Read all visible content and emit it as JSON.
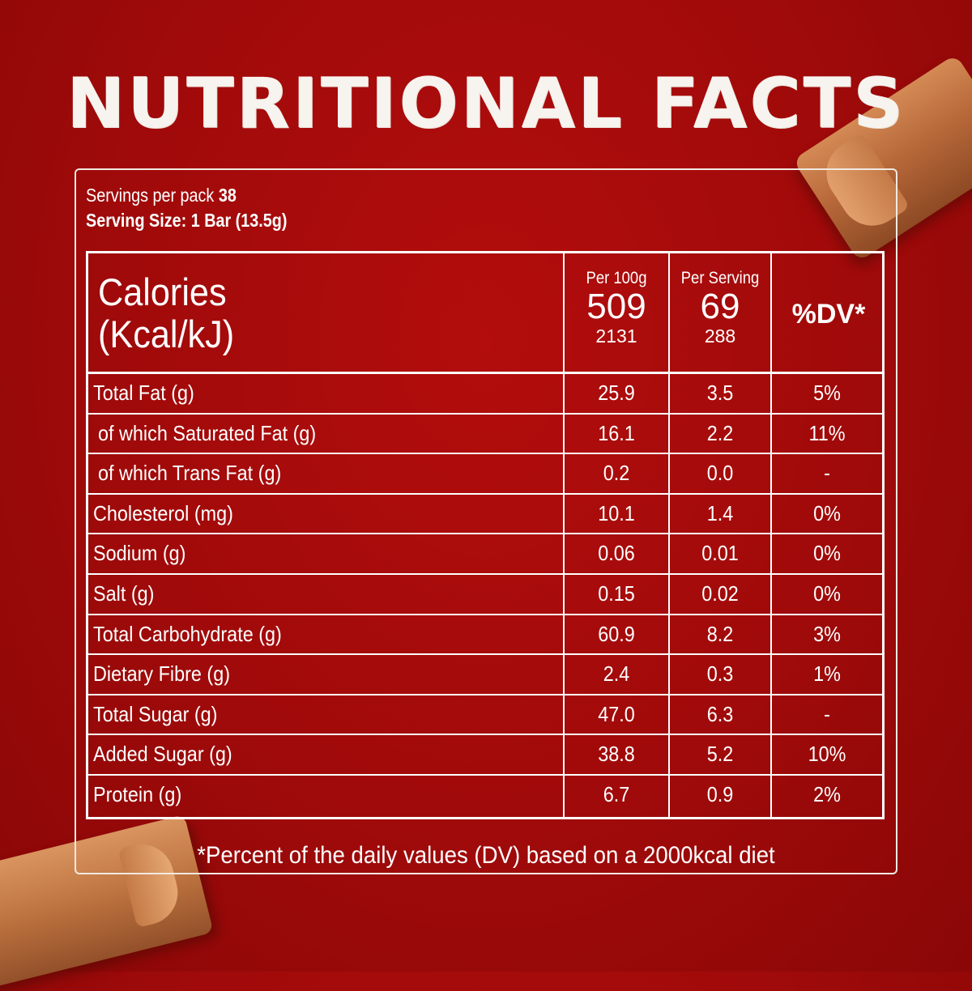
{
  "title": "NUTRITIONAL FACTS",
  "servings": {
    "per_pack_label": "Servings per pack",
    "per_pack_value": "38",
    "size_text": "Serving Size: 1 Bar (13.5g)"
  },
  "header": {
    "calories_line1": "Calories",
    "calories_line2": "(Kcal/kJ)",
    "per100": {
      "label": "Per 100g",
      "kcal": "509",
      "kj": "2131"
    },
    "perserving": {
      "label": "Per Serving",
      "kcal": "69",
      "kj": "288"
    },
    "dv": "%DV*"
  },
  "rows": [
    {
      "label": "Total Fat (g)",
      "per100": "25.9",
      "serving": "3.5",
      "dv": "5%"
    },
    {
      "label": " of which Saturated Fat (g)",
      "per100": "16.1",
      "serving": "2.2",
      "dv": "11%"
    },
    {
      "label": " of which Trans Fat (g)",
      "per100": "0.2",
      "serving": "0.0",
      "dv": "-"
    },
    {
      "label": "Cholesterol (mg)",
      "per100": "10.1",
      "serving": "1.4",
      "dv": "0%"
    },
    {
      "label": "Sodium (g)",
      "per100": "0.06",
      "serving": "0.01",
      "dv": "0%"
    },
    {
      "label": "Salt (g)",
      "per100": "0.15",
      "serving": "0.02",
      "dv": "0%"
    },
    {
      "label": "Total Carbohydrate (g)",
      "per100": "60.9",
      "serving": "8.2",
      "dv": "3%"
    },
    {
      "label": "Dietary Fibre (g)",
      "per100": "2.4",
      "serving": "0.3",
      "dv": "1%"
    },
    {
      "label": "Total Sugar (g)",
      "per100": "47.0",
      "serving": "6.3",
      "dv": "-"
    },
    {
      "label": "Added Sugar (g)",
      "per100": "38.8",
      "serving": "5.2",
      "dv": "10%"
    },
    {
      "label": "Protein (g)",
      "per100": "6.7",
      "serving": "0.9",
      "dv": "2%"
    }
  ],
  "footnote": "*Percent of the daily values (DV) based on a 2000kcal diet",
  "colors": {
    "background": "#a50b0b",
    "text": "#ffffff"
  }
}
